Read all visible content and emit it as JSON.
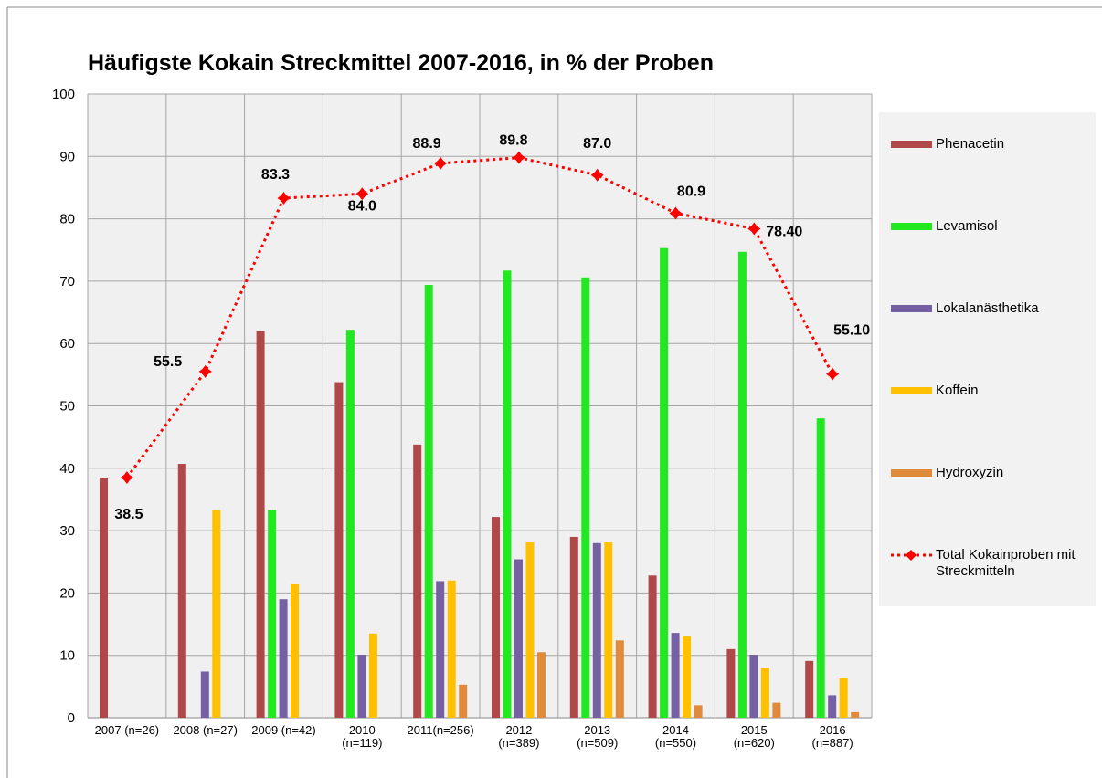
{
  "chart_data": {
    "type": "bar",
    "title": "Häufigste Kokain Streckmittel 2007-2016, in % der Proben",
    "categories": [
      [
        "2007 (n=26)"
      ],
      [
        "2008 (n=27)"
      ],
      [
        "2009 (n=42)"
      ],
      [
        "2010",
        "(n=119)"
      ],
      [
        "2011(n=256)"
      ],
      [
        "2012",
        "(n=389)"
      ],
      [
        "2013",
        "(n=509)"
      ],
      [
        "2014",
        "(n=550)"
      ],
      [
        "2015",
        "(n=620)"
      ],
      [
        "2016",
        "(n=887)"
      ]
    ],
    "series": [
      {
        "name": "Phenacetin",
        "type": "bar",
        "color": "#b0484a",
        "values": [
          38.5,
          40.7,
          62,
          53.8,
          43.8,
          32.2,
          29,
          22.8,
          11,
          9.1
        ]
      },
      {
        "name": "Levamisol",
        "type": "bar",
        "color": "#22e822",
        "values": [
          null,
          null,
          33.3,
          62.2,
          69.4,
          71.7,
          70.6,
          75.3,
          74.7,
          48
        ]
      },
      {
        "name": "Lokalanästhetika",
        "type": "bar",
        "color": "#7460a2",
        "values": [
          null,
          7.4,
          19,
          10.1,
          21.9,
          25.4,
          28,
          13.6,
          10.1,
          3.6
        ]
      },
      {
        "name": "Koffein",
        "type": "bar",
        "color": "#ffc000",
        "values": [
          null,
          33.3,
          21.4,
          13.5,
          22,
          28.1,
          28.1,
          13.1,
          8,
          6.3
        ]
      },
      {
        "name": "Hydroxyzin",
        "type": "bar",
        "color": "#e08a3c",
        "values": [
          null,
          null,
          null,
          null,
          5.3,
          10.5,
          12.4,
          2.0,
          2.4,
          0.9
        ]
      },
      {
        "name": "Total Kokainproben mit Streckmitteln",
        "type": "line",
        "color": "#ff0000",
        "values": [
          38.5,
          55.5,
          83.3,
          84.0,
          88.9,
          89.8,
          87.0,
          80.9,
          78.4,
          55.1
        ],
        "value_labels": [
          "38.5",
          "55.5",
          "83.3",
          "84.0",
          "88.9",
          "89.8",
          "87.0",
          "80.9",
          "78.40",
          "55.10"
        ]
      }
    ],
    "ylim": [
      0,
      100
    ],
    "yticks": [
      0,
      10,
      20,
      30,
      40,
      50,
      60,
      70,
      80,
      90,
      100
    ],
    "grid": true
  }
}
